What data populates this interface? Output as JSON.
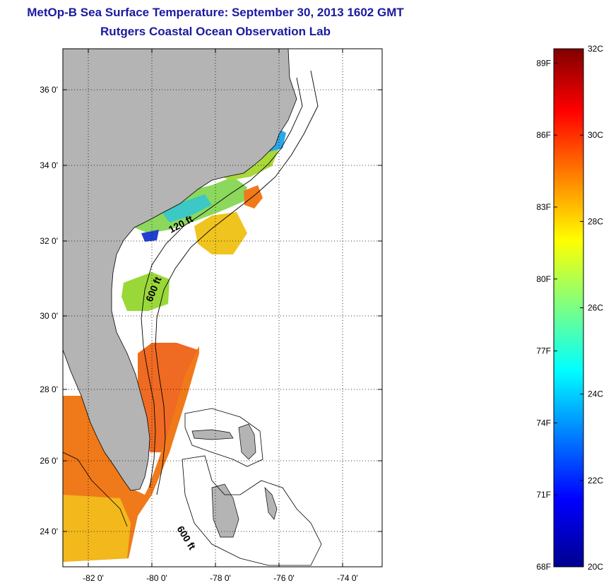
{
  "title": {
    "line1": "MetOp-B Sea Surface Temperature:  September 30, 2013 1602 GMT",
    "line2": "Rutgers Coastal Ocean Observation Lab"
  },
  "map": {
    "lat_labels": [
      "36 0'",
      "34 0'",
      "32 0'",
      "30 0'",
      "28 0'",
      "26 0'",
      "24 0'"
    ],
    "lon_labels": [
      "-82 0'",
      "-80 0'",
      "-78 0'",
      "-76 0'",
      "-74 0'"
    ],
    "isobath_labels": [
      {
        "text": "120 ft",
        "key": "a"
      },
      {
        "text": "600 ft",
        "key": "b"
      },
      {
        "text": "600 ft",
        "key": "c"
      }
    ],
    "colors": {
      "land": "#b4b4b4",
      "ocean": "#ffffff",
      "title": "#1a1aa0"
    }
  },
  "colorbar": {
    "fahrenheit_labels": [
      "89F",
      "86F",
      "83F",
      "80F",
      "77F",
      "74F",
      "71F",
      "68F"
    ],
    "celsius_labels": [
      "32C",
      "30C",
      "28C",
      "26C",
      "24C",
      "22C",
      "20C"
    ],
    "celsius_min": 20,
    "celsius_max": 32
  }
}
